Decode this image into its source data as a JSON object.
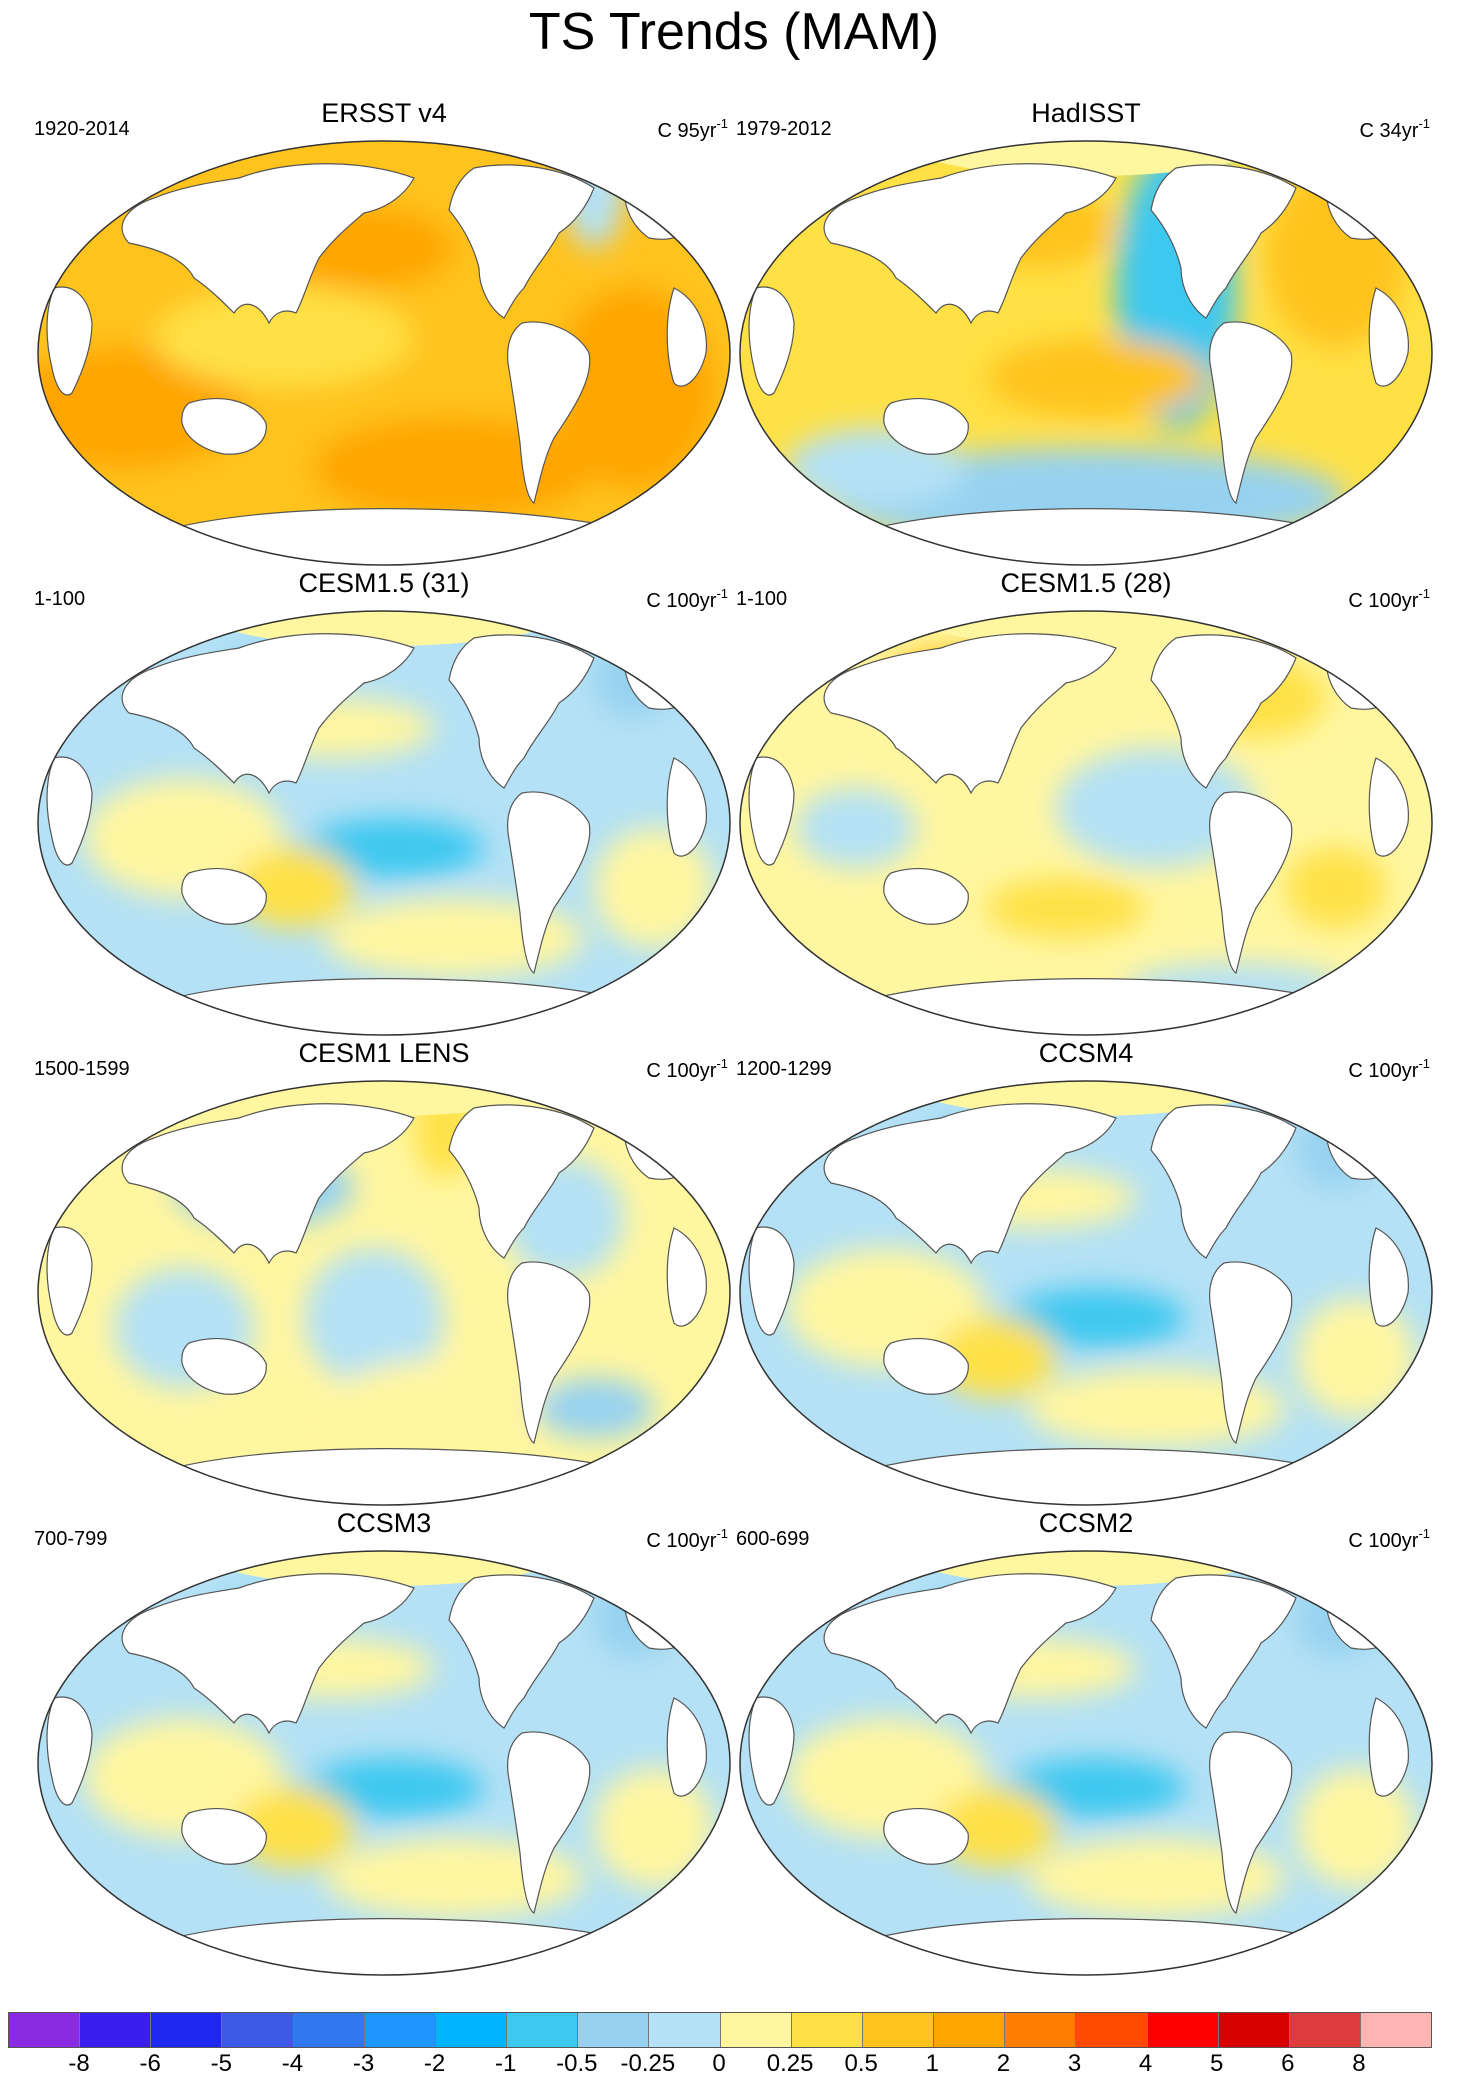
{
  "figure": {
    "title": "TS Trends (MAM)"
  },
  "panels": [
    {
      "title": "ERSST v4",
      "period": "1920-2014",
      "units_prefix": "C",
      "units_value": "95yr",
      "units_exp": "-1",
      "pattern": "warm"
    },
    {
      "title": "HadISST",
      "period": "1979-2012",
      "units_prefix": "C",
      "units_value": "34yr",
      "units_exp": "-1",
      "pattern": "mixed"
    },
    {
      "title": "CESM1.5 (31)",
      "period": "1-100",
      "units_prefix": "C",
      "units_value": "100yr",
      "units_exp": "-1",
      "pattern": "cool"
    },
    {
      "title": "CESM1.5 (28)",
      "period": "1-100",
      "units_prefix": "C",
      "units_value": "100yr",
      "units_exp": "-1",
      "pattern": "weakwarm"
    },
    {
      "title": "CESM1 LENS",
      "period": "1500-1599",
      "units_prefix": "C",
      "units_value": "100yr",
      "units_exp": "-1",
      "pattern": "weakmixed"
    },
    {
      "title": "CCSM4",
      "period": "1200-1299",
      "units_prefix": "C",
      "units_value": "100yr",
      "units_exp": "-1",
      "pattern": "cool"
    },
    {
      "title": "CCSM3",
      "period": "700-799",
      "units_prefix": "C",
      "units_value": "100yr",
      "units_exp": "-1",
      "pattern": "cool"
    },
    {
      "title": "CCSM2",
      "period": "600-699",
      "units_prefix": "C",
      "units_value": "100yr",
      "units_exp": "-1",
      "pattern": "cool"
    }
  ],
  "colorbar": {
    "labels": [
      "-8",
      "-6",
      "-5",
      "-4",
      "-3",
      "-2",
      "-1",
      "-0.5",
      "-0.25",
      "0",
      "0.25",
      "0.5",
      "1",
      "2",
      "3",
      "4",
      "5",
      "6",
      "8"
    ],
    "colors": [
      "#8a2be2",
      "#3a1ef0",
      "#1e28f0",
      "#3c5ae6",
      "#2f78f0",
      "#1e96ff",
      "#00b4ff",
      "#3cc8f0",
      "#96d2f0",
      "#b4e1f5",
      "#fff6a0",
      "#ffe146",
      "#ffc31e",
      "#ffa500",
      "#ff7d00",
      "#ff4b00",
      "#ff0000",
      "#d70000",
      "#dc3c3c",
      "#ffb4b4"
    ]
  }
}
